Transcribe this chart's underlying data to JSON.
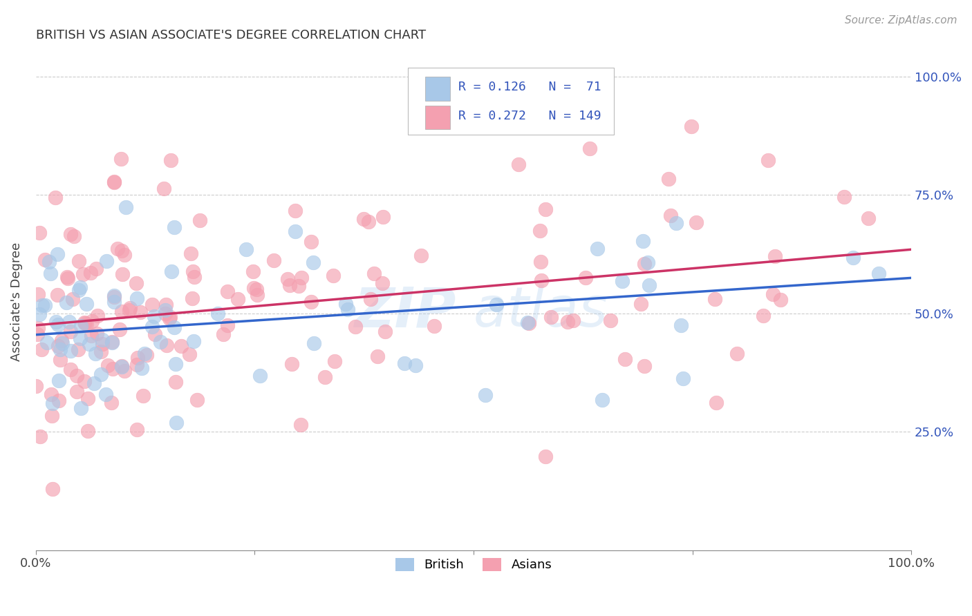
{
  "title": "BRITISH VS ASIAN ASSOCIATE'S DEGREE CORRELATION CHART",
  "source": "Source: ZipAtlas.com",
  "ylabel": "Associate's Degree",
  "british_R": 0.126,
  "british_N": 71,
  "asian_R": 0.272,
  "asian_N": 149,
  "british_color": "#a8c8e8",
  "asian_color": "#f4a0b0",
  "british_line_color": "#3366cc",
  "asian_line_color": "#cc3366",
  "legend_text_color": "#3355bb",
  "title_color": "#333333",
  "watermark": "ZIPAtlas",
  "background_color": "#ffffff",
  "grid_color": "#cccccc",
  "xlim": [
    0.0,
    1.0
  ],
  "ylim": [
    0.0,
    1.05
  ],
  "ytick_values": [
    0.25,
    0.5,
    0.75,
    1.0
  ],
  "ytick_labels": [
    "25.0%",
    "50.0%",
    "75.0%",
    "100.0%"
  ],
  "xtick_values": [
    0.0,
    0.25,
    0.5,
    0.75,
    1.0
  ],
  "xtick_labels": [
    "0.0%",
    "",
    "",
    "",
    "100.0%"
  ],
  "brit_line_y0": 0.455,
  "brit_line_y1": 0.575,
  "asian_line_y0": 0.475,
  "asian_line_y1": 0.635
}
